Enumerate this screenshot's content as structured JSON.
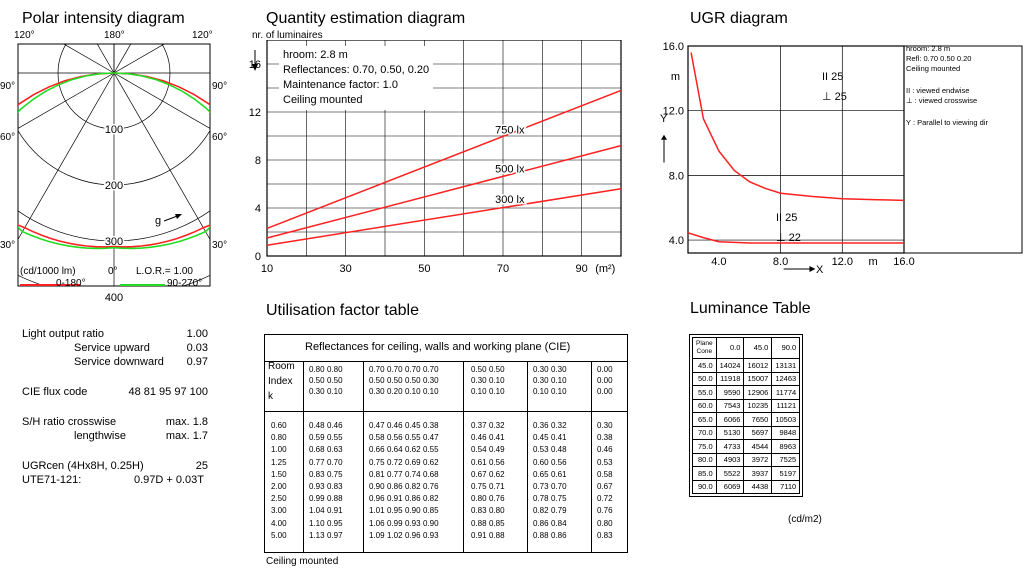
{
  "polar": {
    "title": "Polar intensity diagram",
    "angle_labels": [
      "120°",
      "180°",
      "120°",
      "90°",
      "90°",
      "60°",
      "60°",
      "30°",
      "30°"
    ],
    "radial_labels": [
      "100",
      "200",
      "300",
      "400"
    ],
    "bottom_left": "(cd/1000 lm)",
    "bottom_zero": "0°",
    "lor": "L.O.R.= 1.00",
    "g_label": "g",
    "legend": [
      {
        "label": "0-180°",
        "color": "#ff2020"
      },
      {
        "label": "90-270°",
        "color": "#22dd22"
      }
    ]
  },
  "specs": {
    "rows": [
      {
        "label": "Light output ratio",
        "value": "1.00"
      },
      {
        "label": "Service upward",
        "value": "0.03"
      },
      {
        "label": "Service downward",
        "value": "0.97"
      },
      {
        "label": "CIE flux code",
        "value": "48 81 95 97 100"
      },
      {
        "label": "S/H ratio crosswise",
        "value": "max. 1.8"
      },
      {
        "label": "lengthwise",
        "value": "max. 1.7"
      },
      {
        "label": "UGRcen (4Hx8H, 0.25H)",
        "value": "25"
      },
      {
        "label": "UTE71-121:",
        "value": "0.97D + 0.03T"
      }
    ]
  },
  "chart_data": [
    {
      "type": "line",
      "title": "Quantity estimation diagram",
      "ylabel": "nr. of luminaires",
      "xlabel": "(m²)",
      "xlim": [
        10,
        100
      ],
      "ylim": [
        0,
        18
      ],
      "xticks": [
        10,
        30,
        50,
        70,
        90
      ],
      "yticks": [
        0,
        4,
        8,
        12,
        16
      ],
      "grid": true,
      "info": [
        "hroom: 2.8 m",
        "Reflectances: 0.70, 0.50, 0.20",
        "Maintenance factor: 1.0",
        "Ceiling mounted"
      ],
      "series": [
        {
          "name": "750 lx",
          "x": [
            10,
            100
          ],
          "y": [
            2.3,
            13.8
          ]
        },
        {
          "name": "500 lx",
          "x": [
            10,
            100
          ],
          "y": [
            1.5,
            9.2
          ]
        },
        {
          "name": "300 lx",
          "x": [
            10,
            100
          ],
          "y": [
            0.9,
            5.6
          ]
        }
      ]
    },
    {
      "type": "line",
      "title": "UGR diagram",
      "xlabel": "X",
      "ylabel": "Y",
      "xunit": "m",
      "yunit": "m",
      "xlim": [
        2,
        16
      ],
      "ylim": [
        3.2,
        16
      ],
      "xtick_labels": [
        "4.0",
        "8.0",
        "12.0",
        "16.0"
      ],
      "ytick_labels": [
        "4.0",
        "8.0",
        "12.0",
        "16.0"
      ],
      "info": [
        "hroom: 2.8 m",
        "Refl: 0.70 0.50 0.20",
        "Ceiling mounted",
        "II : viewed endwise",
        "⊥ : viewed crosswise",
        "Y : Parallel to viewing dir"
      ],
      "annotations": [
        "II 25",
        "⊥ 25",
        "II 25",
        "⊥ 22"
      ],
      "series": [
        {
          "x": [
            2.2,
            3,
            4,
            5,
            6,
            7,
            8,
            10,
            12,
            14,
            16
          ],
          "y": [
            15.6,
            11.5,
            9.5,
            8.3,
            7.6,
            7.2,
            6.9,
            6.7,
            6.55,
            6.5,
            6.45
          ]
        },
        {
          "x": [
            2,
            3,
            4,
            6,
            8,
            12,
            16
          ],
          "y": [
            4.45,
            4.15,
            3.9,
            3.82,
            3.82,
            3.82,
            3.82
          ]
        }
      ]
    },
    {
      "type": "table",
      "title": "Utilisation factor table",
      "header": "Reflectances for ceiling, walls and working plane (CIE)",
      "room_index_label": [
        "Room",
        "Index",
        "k"
      ],
      "refl_groups": [
        [
          [
            "0.80",
            "0.80"
          ],
          [
            "0.50",
            "0.50"
          ],
          [
            "0.30",
            "0.10"
          ]
        ],
        [
          [
            "0.70",
            "0.70",
            "0.70",
            "0.70"
          ],
          [
            "0.50",
            "0.50",
            "0.50",
            "0.30"
          ],
          [
            "0.30",
            "0.20",
            "0.10",
            "0.10"
          ]
        ],
        [
          [
            "0.50",
            "0.50"
          ],
          [
            "0.30",
            "0.10"
          ],
          [
            "0.10",
            "0.10"
          ]
        ],
        [
          [
            "0.30",
            "0.30"
          ],
          [
            "0.30",
            "0.10"
          ],
          [
            "0.10",
            "0.10"
          ]
        ],
        [
          [
            "0.00"
          ],
          [
            "0.00"
          ],
          [
            "0.00"
          ]
        ]
      ],
      "k": [
        "0.60",
        "0.80",
        "1.00",
        "1.25",
        "1.50",
        "2.00",
        "2.50",
        "3.00",
        "4.00",
        "5.00"
      ],
      "rows": [
        [
          [
            "0.48",
            "0.46"
          ],
          [
            "0.47",
            "0.46",
            "0.45",
            "0.38"
          ],
          [
            "0.37",
            "0.32"
          ],
          [
            "0.36",
            "0.32"
          ],
          [
            "0.30"
          ]
        ],
        [
          [
            "0.59",
            "0.55"
          ],
          [
            "0.58",
            "0.56",
            "0.55",
            "0.47"
          ],
          [
            "0.46",
            "0.41"
          ],
          [
            "0.45",
            "0.41"
          ],
          [
            "0.38"
          ]
        ],
        [
          [
            "0.68",
            "0.63"
          ],
          [
            "0.66",
            "0.64",
            "0.62",
            "0.55"
          ],
          [
            "0.54",
            "0.49"
          ],
          [
            "0.53",
            "0.48"
          ],
          [
            "0.46"
          ]
        ],
        [
          [
            "0.77",
            "0.70"
          ],
          [
            "0.75",
            "0.72",
            "0.69",
            "0.62"
          ],
          [
            "0.61",
            "0.56"
          ],
          [
            "0.60",
            "0.56"
          ],
          [
            "0.53"
          ]
        ],
        [
          [
            "0.83",
            "0.75"
          ],
          [
            "0.81",
            "0.77",
            "0.74",
            "0.68"
          ],
          [
            "0.67",
            "0.62"
          ],
          [
            "0.65",
            "0.61"
          ],
          [
            "0.58"
          ]
        ],
        [
          [
            "0.93",
            "0.83"
          ],
          [
            "0.90",
            "0.86",
            "0.82",
            "0.76"
          ],
          [
            "0.75",
            "0.71"
          ],
          [
            "0.73",
            "0.70"
          ],
          [
            "0.67"
          ]
        ],
        [
          [
            "0.99",
            "0.88"
          ],
          [
            "0.96",
            "0.91",
            "0.86",
            "0.82"
          ],
          [
            "0.80",
            "0.76"
          ],
          [
            "0.78",
            "0.75"
          ],
          [
            "0.72"
          ]
        ],
        [
          [
            "1.04",
            "0.91"
          ],
          [
            "1.01",
            "0.95",
            "0.90",
            "0.85"
          ],
          [
            "0.83",
            "0.80"
          ],
          [
            "0.82",
            "0.79"
          ],
          [
            "0.76"
          ]
        ],
        [
          [
            "1.10",
            "0.95"
          ],
          [
            "1.06",
            "0.99",
            "0.93",
            "0.90"
          ],
          [
            "0.88",
            "0.85"
          ],
          [
            "0.86",
            "0.84"
          ],
          [
            "0.80"
          ]
        ],
        [
          [
            "1.13",
            "0.97"
          ],
          [
            "1.09",
            "1.02",
            "0.96",
            "0.93"
          ],
          [
            "0.91",
            "0.88"
          ],
          [
            "0.88",
            "0.86"
          ],
          [
            "0.83"
          ]
        ]
      ],
      "footer": "Ceiling mounted"
    },
    {
      "type": "table",
      "title": "Luminance Table",
      "header": [
        "Plane\nCone",
        "0.0",
        "45.0",
        "90.0"
      ],
      "rows": [
        [
          "45.0",
          "14024",
          "16012",
          "13131"
        ],
        [
          "50.0",
          "11918",
          "15007",
          "12463"
        ],
        [
          "55.0",
          "9590",
          "12906",
          "11774"
        ],
        [
          "60.0",
          "7543",
          "10235",
          "11121"
        ],
        [
          "65.0",
          "6066",
          "7650",
          "10503"
        ],
        [
          "70.0",
          "5130",
          "5697",
          "9848"
        ],
        [
          "75.0",
          "4733",
          "4544",
          "8963"
        ],
        [
          "80.0",
          "4903",
          "3972",
          "7525"
        ],
        [
          "85.0",
          "5522",
          "3937",
          "5197"
        ],
        [
          "90.0",
          "6069",
          "4438",
          "7110"
        ]
      ],
      "unit": "(cd/m2)"
    }
  ]
}
